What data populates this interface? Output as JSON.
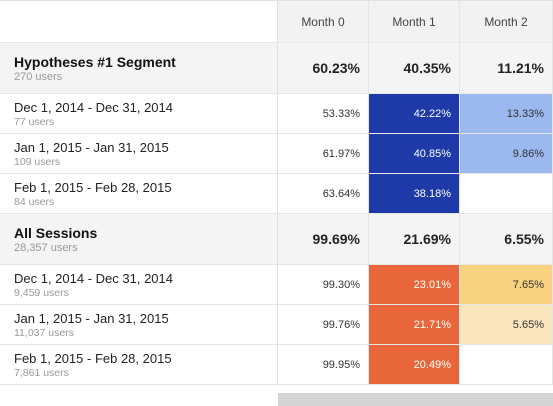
{
  "header": {
    "columns": [
      "Month 0",
      "Month 1",
      "Month 2"
    ]
  },
  "groups": [
    {
      "segment": {
        "name": "Hypotheses #1 Segment",
        "users": "270 users",
        "values": [
          "60.23%",
          "40.35%",
          "11.21%"
        ]
      },
      "rows": [
        {
          "range": "Dec 1, 2014 - Dec 31, 2014",
          "users": "77 users",
          "values": [
            "53.33%",
            "42.22%",
            "13.33%"
          ]
        },
        {
          "range": "Jan 1, 2015 - Jan 31, 2015",
          "users": "109 users",
          "values": [
            "61.97%",
            "40.85%",
            "9.86%"
          ]
        },
        {
          "range": "Feb 1, 2015 - Feb 28, 2015",
          "users": "84 users",
          "values": [
            "63.64%",
            "38.18%",
            ""
          ]
        }
      ]
    },
    {
      "segment": {
        "name": "All Sessions",
        "users": "28,357 users",
        "values": [
          "99.69%",
          "21.69%",
          "6.55%"
        ]
      },
      "rows": [
        {
          "range": "Dec 1, 2014 - Dec 31, 2014",
          "users": "9,459 users",
          "values": [
            "99.30%",
            "23.01%",
            "7.65%"
          ]
        },
        {
          "range": "Jan 1, 2015 - Jan 31, 2015",
          "users": "11,037 users",
          "values": [
            "99.76%",
            "21.71%",
            "5.65%"
          ]
        },
        {
          "range": "Feb 1, 2015 - Feb 28, 2015",
          "users": "7,861 users",
          "values": [
            "99.95%",
            "20.49%",
            ""
          ]
        }
      ]
    }
  ],
  "colors": {
    "blue_dark": "#1e3aa8",
    "blue_light": "#9bb8ef",
    "orange_dark": "#e8673a",
    "orange_mid": "#f8d27e",
    "orange_light": "#fae6bd"
  }
}
